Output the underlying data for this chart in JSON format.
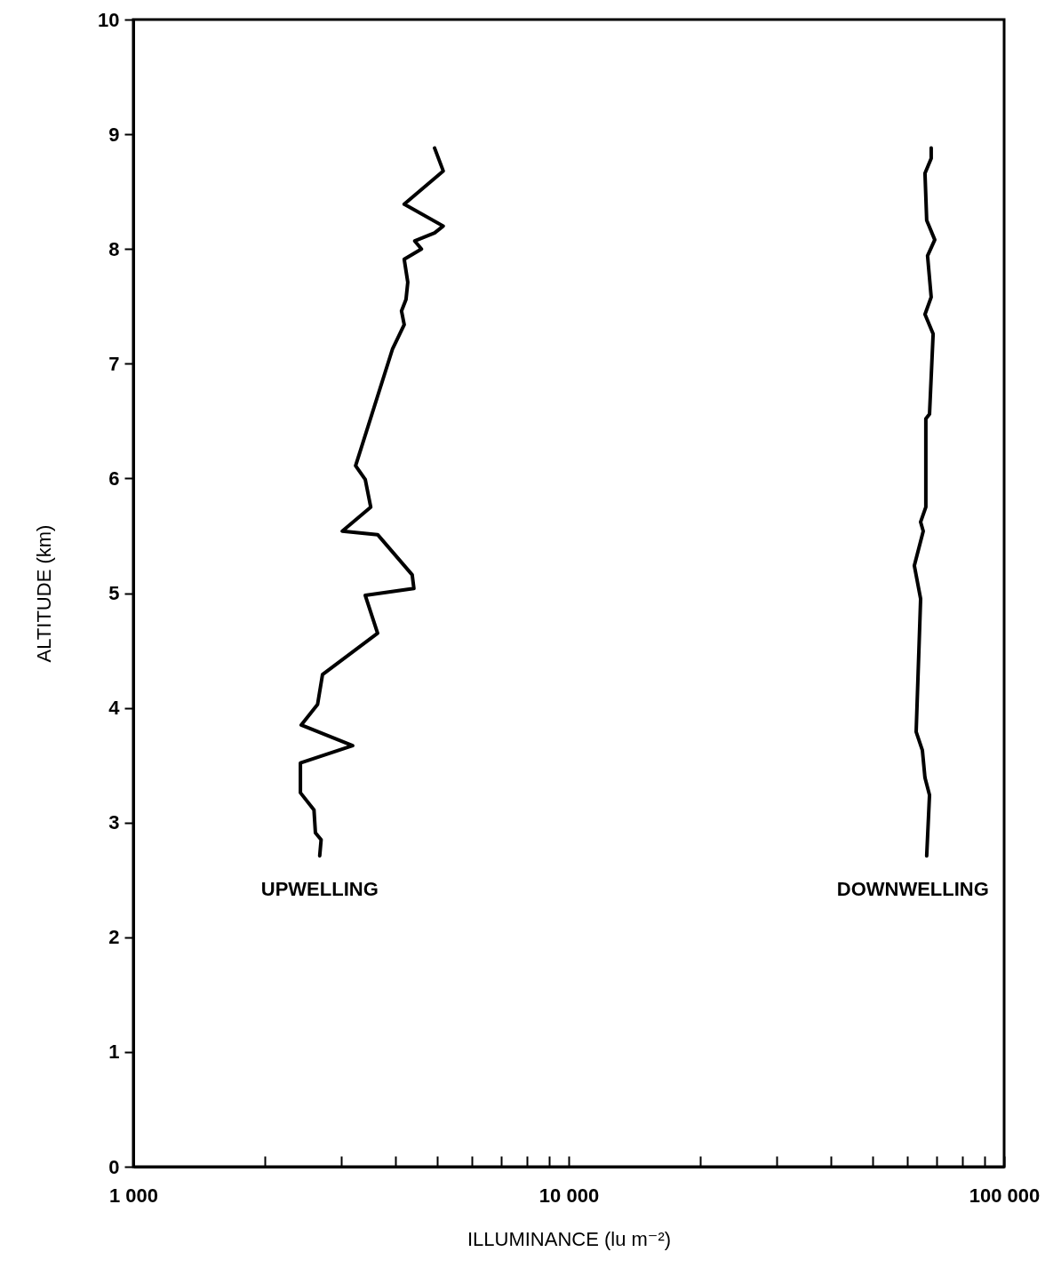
{
  "chart_data": {
    "type": "line",
    "xlabel": "ILLUMINANCE (lu m⁻²)",
    "ylabel": "ALTITUDE (km)",
    "xlim": [
      1000,
      100000
    ],
    "ylim": [
      0,
      10
    ],
    "xticks": [
      {
        "value": 1000,
        "label": "1 000"
      },
      {
        "value": 2000,
        "label": null
      },
      {
        "value": 3000,
        "label": null
      },
      {
        "value": 4000,
        "label": null
      },
      {
        "value": 5000,
        "label": null
      },
      {
        "value": 6000,
        "label": null
      },
      {
        "value": 7000,
        "label": null
      },
      {
        "value": 8000,
        "label": null
      },
      {
        "value": 9000,
        "label": null
      },
      {
        "value": 10000,
        "label": "10 000"
      },
      {
        "value": 20000,
        "label": null
      },
      {
        "value": 30000,
        "label": null
      },
      {
        "value": 40000,
        "label": null
      },
      {
        "value": 50000,
        "label": null
      },
      {
        "value": 60000,
        "label": null
      },
      {
        "value": 70000,
        "label": null
      },
      {
        "value": 80000,
        "label": null
      },
      {
        "value": 90000,
        "label": null
      },
      {
        "value": 100000,
        "label": "100 000"
      }
    ],
    "yticks": [
      0,
      1,
      2,
      3,
      4,
      5,
      6,
      7,
      8,
      9,
      10
    ],
    "log": "x",
    "marker": "none",
    "line_style": "solid",
    "series": [
      {
        "name": "UPWELLING",
        "color": "#000000",
        "x": [
          4920,
          5150,
          4190,
          5150,
          4920,
          4430,
          4590,
          4190,
          4270,
          4230,
          4130,
          4190,
          3940,
          3240,
          3410,
          3510,
          3020,
          3640,
          4370,
          4410,
          3410,
          3640,
          2720,
          2650,
          2430,
          3190,
          2420,
          2420,
          2600,
          2620,
          2700,
          2680
        ],
        "values": [
          8.88,
          8.68,
          8.39,
          8.2,
          8.14,
          8.07,
          8.0,
          7.91,
          7.71,
          7.56,
          7.46,
          7.34,
          7.13,
          6.11,
          5.99,
          5.75,
          5.54,
          5.51,
          5.16,
          5.04,
          4.98,
          4.65,
          4.29,
          4.03,
          3.85,
          3.67,
          3.52,
          3.26,
          3.11,
          2.91,
          2.85,
          2.71
        ]
      },
      {
        "name": "DOWNWELLING",
        "color": "#000000",
        "x": [
          68000,
          68000,
          65800,
          66400,
          69300,
          66700,
          68000,
          65800,
          68700,
          67400,
          66100,
          66100,
          64300,
          65200,
          62200,
          64300,
          62800,
          64900,
          65800,
          67400,
          66400
        ],
        "values": [
          8.88,
          8.79,
          8.66,
          8.25,
          8.08,
          7.94,
          7.58,
          7.43,
          7.26,
          6.56,
          6.52,
          5.75,
          5.62,
          5.54,
          5.24,
          4.95,
          3.79,
          3.63,
          3.39,
          3.24,
          2.71
        ]
      }
    ]
  }
}
